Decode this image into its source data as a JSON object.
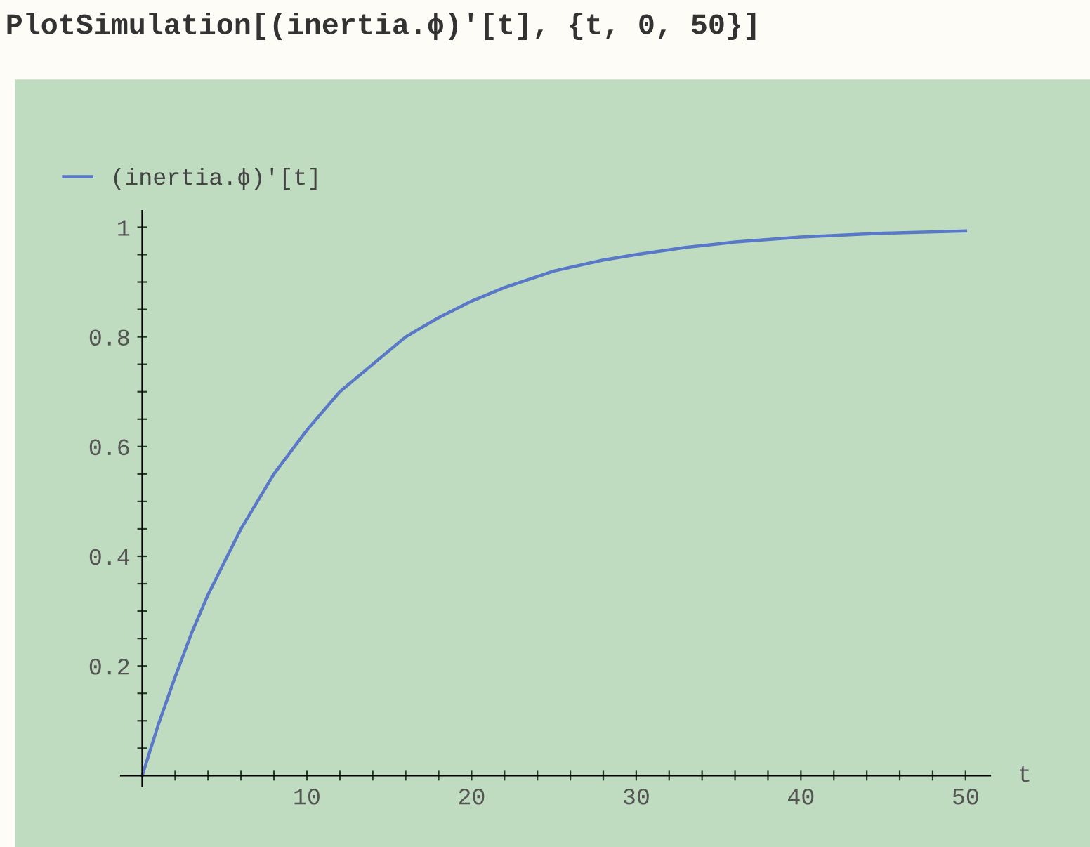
{
  "chart_data": {
    "type": "line",
    "title": "PlotSimulation[(inertia.ϕ)'[t], {t, 0, 50}]",
    "xlabel": "t",
    "x": [
      0,
      1,
      2,
      3,
      4,
      5,
      6,
      7,
      8,
      9,
      10,
      12,
      14,
      16,
      18,
      20,
      22,
      25,
      28,
      30,
      33,
      36,
      40,
      45,
      50
    ],
    "series": [
      {
        "name": "(inertia.ϕ)ʹ[t]",
        "color": "#5a78c8",
        "values": [
          0,
          0.095,
          0.18,
          0.26,
          0.33,
          0.39,
          0.45,
          0.5,
          0.55,
          0.59,
          0.63,
          0.7,
          0.75,
          0.8,
          0.835,
          0.865,
          0.89,
          0.92,
          0.94,
          0.95,
          0.963,
          0.973,
          0.982,
          0.989,
          0.993
        ]
      }
    ],
    "xlim": [
      -1.3,
      51.5
    ],
    "ylim": [
      -0.02,
      1.03
    ],
    "xticks": [
      {
        "value": 2,
        "label": null
      },
      {
        "value": 4,
        "label": null
      },
      {
        "value": 6,
        "label": null
      },
      {
        "value": 8,
        "label": null
      },
      10,
      {
        "value": 12,
        "label": null
      },
      {
        "value": 14,
        "label": null
      },
      {
        "value": 16,
        "label": null
      },
      {
        "value": 18,
        "label": null
      },
      20,
      {
        "value": 22,
        "label": null
      },
      {
        "value": 24,
        "label": null
      },
      {
        "value": 26,
        "label": null
      },
      {
        "value": 28,
        "label": null
      },
      30,
      {
        "value": 32,
        "label": null
      },
      {
        "value": 34,
        "label": null
      },
      {
        "value": 36,
        "label": null
      },
      {
        "value": 38,
        "label": null
      },
      40,
      {
        "value": 42,
        "label": null
      },
      {
        "value": 44,
        "label": null
      },
      {
        "value": 46,
        "label": null
      },
      {
        "value": 48,
        "label": null
      },
      50
    ],
    "yticks": [
      {
        "value": 0.05,
        "label": null
      },
      {
        "value": 0.1,
        "label": null
      },
      {
        "value": 0.15,
        "label": null
      },
      0.2,
      {
        "value": 0.25,
        "label": null
      },
      {
        "value": 0.3,
        "label": null
      },
      {
        "value": 0.35,
        "label": null
      },
      0.4,
      {
        "value": 0.45,
        "label": null
      },
      {
        "value": 0.5,
        "label": null
      },
      {
        "value": 0.55,
        "label": null
      },
      0.6,
      {
        "value": 0.65,
        "label": null
      },
      {
        "value": 0.7,
        "label": null
      },
      {
        "value": 0.75,
        "label": null
      },
      0.8,
      {
        "value": 0.85,
        "label": null
      },
      {
        "value": 0.9,
        "label": null
      },
      {
        "value": 0.95,
        "label": null
      },
      1
    ],
    "grid": false,
    "legend": "top left",
    "marker": "none",
    "line_style": "solid"
  }
}
